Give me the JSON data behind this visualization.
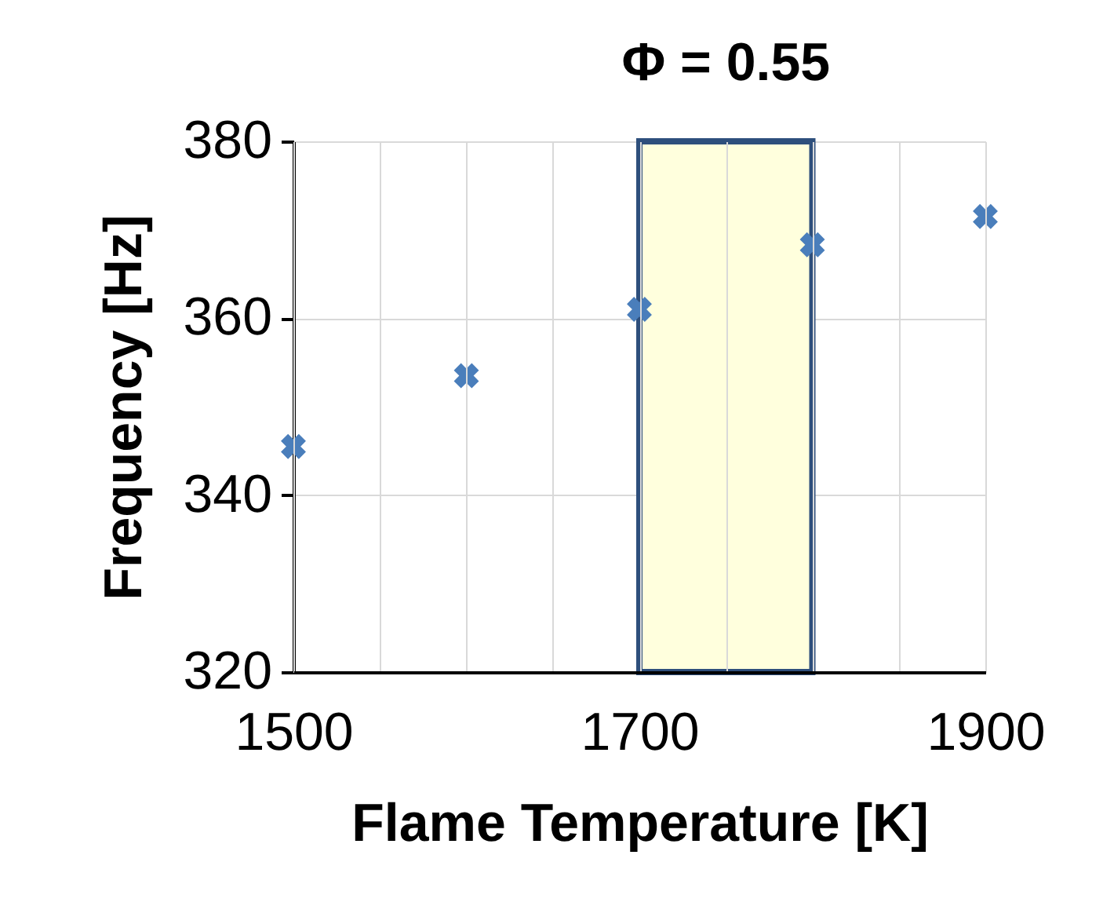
{
  "chart_data": {
    "type": "scatter",
    "xlabel": "Flame Temperature [K]",
    "ylabel": "Frequency [Hz]",
    "x": [
      1500,
      1600,
      1700,
      1800,
      1900
    ],
    "series": [
      {
        "color": "#4a7ebb",
        "values": [
          345.5,
          353.5,
          361,
          368.3,
          371.5
        ]
      }
    ],
    "xlim": [
      1500,
      1900
    ],
    "xticks": [
      1500,
      {
        "value": 1550,
        "label": null
      },
      {
        "value": 1600,
        "label": null
      },
      {
        "value": 1650,
        "label": null
      },
      1700,
      {
        "value": 1750,
        "label": null
      },
      {
        "value": 1800,
        "label": null
      },
      {
        "value": 1850,
        "label": null
      },
      1900
    ],
    "ylim": [
      320,
      380
    ],
    "yticks": [
      320,
      340,
      360,
      380
    ],
    "bands": [
      {
        "axis": "x",
        "from": 1700,
        "to": 1800,
        "label": "Φ = 0.55",
        "color": "#ffffdd"
      }
    ],
    "grid": true,
    "marker": "cross"
  }
}
